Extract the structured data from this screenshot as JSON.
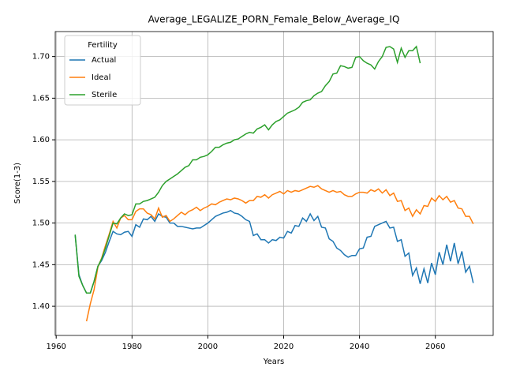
{
  "chart_data": {
    "type": "line",
    "title": "Average_LEGALIZE_PORN_Female_Below_Average_IQ",
    "xlabel": "Years",
    "ylabel": "Score(1-3)",
    "legend_title": "Fertility",
    "legend": "upper left",
    "grid": true,
    "xlim": [
      1959.75,
      2075.25
    ],
    "xticks": [
      1960,
      1980,
      2000,
      2020,
      2040,
      2060
    ],
    "ylim": [
      1.365,
      1.73
    ],
    "yticks": [
      {
        "value": 1.4,
        "label": "1.40"
      },
      {
        "value": 1.45,
        "label": "1.45"
      },
      {
        "value": 1.5,
        "label": "1.50"
      },
      {
        "value": 1.55,
        "label": "1.55"
      },
      {
        "value": 1.6,
        "label": "1.60"
      },
      {
        "value": 1.65,
        "label": "1.65"
      },
      {
        "value": 1.7,
        "label": "1.70"
      }
    ],
    "x": [
      1965,
      1966,
      1967,
      1968,
      1969,
      1970,
      1971,
      1972,
      1973,
      1974,
      1975,
      1976,
      1977,
      1978,
      1979,
      1980,
      1981,
      1982,
      1983,
      1984,
      1985,
      1986,
      1987,
      1988,
      1989,
      1990,
      1991,
      1992,
      1993,
      1994,
      1995,
      1996,
      1997,
      1998,
      1999,
      2000,
      2001,
      2002,
      2003,
      2004,
      2005,
      2006,
      2007,
      2008,
      2009,
      2010,
      2011,
      2012,
      2013,
      2014,
      2015,
      2016,
      2017,
      2018,
      2019,
      2020,
      2021,
      2022,
      2023,
      2024,
      2025,
      2026,
      2027,
      2028,
      2029,
      2030,
      2031,
      2032,
      2033,
      2034,
      2035,
      2036,
      2037,
      2038,
      2039,
      2040,
      2041,
      2042,
      2043,
      2044,
      2045,
      2046,
      2047,
      2048,
      2049,
      2050,
      2051,
      2052,
      2053,
      2054,
      2055,
      2056,
      2057,
      2058,
      2059,
      2060,
      2061,
      2062,
      2063,
      2064,
      2065,
      2066,
      2067,
      2068,
      2069,
      2070
    ],
    "series": [
      {
        "name": "Actual",
        "color": "#1f77b4",
        "values": [
          1.486,
          1.438,
          1.425,
          1.416,
          1.416,
          1.43,
          1.448,
          1.455,
          1.465,
          1.478,
          1.49,
          1.487,
          1.486,
          1.489,
          1.49,
          1.484,
          1.498,
          1.495,
          1.505,
          1.504,
          1.508,
          1.502,
          1.511,
          1.508,
          1.507,
          1.5,
          1.5,
          1.496,
          1.496,
          1.495,
          1.494,
          1.493,
          1.494,
          1.494,
          1.497,
          1.5,
          1.504,
          1.508,
          1.51,
          1.512,
          1.513,
          1.515,
          1.512,
          1.511,
          1.508,
          1.504,
          1.502,
          1.485,
          1.487,
          1.48,
          1.48,
          1.476,
          1.48,
          1.479,
          1.483,
          1.482,
          1.49,
          1.488,
          1.497,
          1.496,
          1.506,
          1.502,
          1.511,
          1.503,
          1.508,
          1.495,
          1.494,
          1.481,
          1.478,
          1.47,
          1.467,
          1.462,
          1.459,
          1.461,
          1.461,
          1.469,
          1.47,
          1.483,
          1.484,
          1.496,
          1.498,
          1.5,
          1.502,
          1.494,
          1.495,
          1.478,
          1.48,
          1.46,
          1.464,
          1.437,
          1.446,
          1.427,
          1.445,
          1.428,
          1.452,
          1.438,
          1.465,
          1.45,
          1.474,
          1.454,
          1.476,
          1.451,
          1.466,
          1.441,
          1.448,
          1.428
        ]
      },
      {
        "name": "Ideal",
        "color": "#ff7f0e",
        "values": [
          null,
          null,
          null,
          1.382,
          1.403,
          1.42,
          1.447,
          1.458,
          1.473,
          1.487,
          1.502,
          1.494,
          1.506,
          1.509,
          1.504,
          1.504,
          1.514,
          1.517,
          1.517,
          1.512,
          1.51,
          1.505,
          1.518,
          1.507,
          1.509,
          1.502,
          1.505,
          1.509,
          1.513,
          1.51,
          1.514,
          1.516,
          1.519,
          1.515,
          1.518,
          1.52,
          1.523,
          1.522,
          1.525,
          1.527,
          1.529,
          1.528,
          1.53,
          1.529,
          1.527,
          1.524,
          1.527,
          1.527,
          1.532,
          1.531,
          1.534,
          1.53,
          1.534,
          1.536,
          1.538,
          1.535,
          1.539,
          1.537,
          1.539,
          1.538,
          1.54,
          1.542,
          1.544,
          1.543,
          1.545,
          1.541,
          1.539,
          1.537,
          1.539,
          1.537,
          1.538,
          1.534,
          1.532,
          1.532,
          1.535,
          1.537,
          1.537,
          1.536,
          1.54,
          1.538,
          1.541,
          1.536,
          1.54,
          1.533,
          1.536,
          1.526,
          1.527,
          1.515,
          1.518,
          1.508,
          1.516,
          1.511,
          1.521,
          1.52,
          1.53,
          1.526,
          1.533,
          1.528,
          1.532,
          1.525,
          1.527,
          1.518,
          1.517,
          1.508,
          1.508,
          1.499
        ]
      },
      {
        "name": "Sterile",
        "color": "#2ca02c",
        "values": [
          1.486,
          1.436,
          1.425,
          1.416,
          1.416,
          1.43,
          1.448,
          1.457,
          1.47,
          1.485,
          1.5,
          1.499,
          1.506,
          1.511,
          1.509,
          1.51,
          1.523,
          1.523,
          1.526,
          1.527,
          1.529,
          1.531,
          1.537,
          1.545,
          1.55,
          1.553,
          1.556,
          1.559,
          1.563,
          1.567,
          1.569,
          1.576,
          1.576,
          1.579,
          1.58,
          1.582,
          1.586,
          1.591,
          1.591,
          1.594,
          1.596,
          1.597,
          1.6,
          1.601,
          1.604,
          1.607,
          1.609,
          1.608,
          1.613,
          1.615,
          1.618,
          1.612,
          1.618,
          1.622,
          1.624,
          1.628,
          1.632,
          1.634,
          1.636,
          1.639,
          1.645,
          1.647,
          1.648,
          1.653,
          1.656,
          1.658,
          1.665,
          1.67,
          1.679,
          1.68,
          1.689,
          1.688,
          1.686,
          1.687,
          1.699,
          1.7,
          1.695,
          1.692,
          1.69,
          1.685,
          1.694,
          1.7,
          1.711,
          1.712,
          1.709,
          1.693,
          1.71,
          1.699,
          1.707,
          1.707,
          1.712,
          1.692,
          null,
          null,
          null,
          null,
          null,
          null,
          null,
          null,
          null,
          null,
          null,
          null,
          null,
          null
        ]
      }
    ]
  }
}
